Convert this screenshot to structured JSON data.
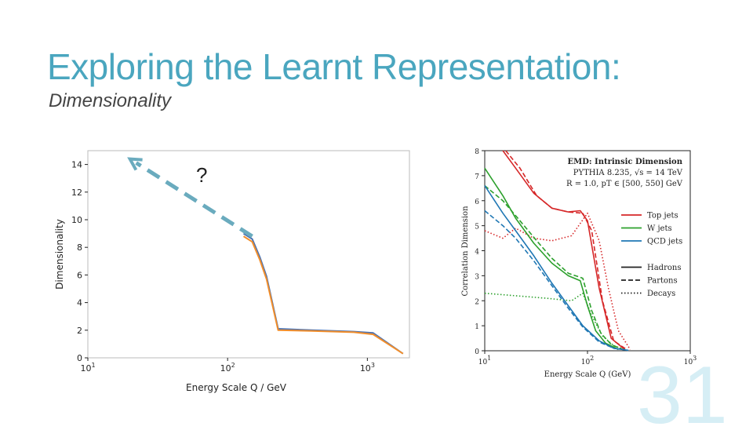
{
  "slide": {
    "title": "Exploring the Learnt Representation:",
    "subtitle": "Dimensionality",
    "page_number": "31",
    "question_mark": "?"
  },
  "chart_data": [
    {
      "type": "line",
      "xlabel": "Energy Scale Q / GeV",
      "ylabel": "Dimensionality",
      "xscale": "log",
      "xlim": [
        10,
        2000
      ],
      "ylim": [
        0,
        15
      ],
      "xticks": [
        10,
        100,
        1000
      ],
      "xtick_labels": [
        "10",
        "10",
        "10"
      ],
      "xtick_exponents": [
        "1",
        "2",
        "3"
      ],
      "yticks": [
        0,
        2,
        4,
        6,
        8,
        10,
        12,
        14
      ],
      "series": [
        {
          "color": "#4c72b0",
          "x": [
            130,
            150,
            170,
            190,
            230,
            400,
            800,
            1100,
            1800
          ],
          "y": [
            9.0,
            8.6,
            7.3,
            5.9,
            2.1,
            2.0,
            1.9,
            1.8,
            0.3
          ]
        },
        {
          "color": "#f28e2b",
          "x": [
            130,
            150,
            170,
            190,
            230,
            400,
            800,
            1100,
            1800
          ],
          "y": [
            8.8,
            8.4,
            7.1,
            5.7,
            2.0,
            1.95,
            1.85,
            1.7,
            0.3
          ]
        }
      ],
      "annotation": {
        "color": "#6aabbe",
        "from": [
          150,
          8.8
        ],
        "to": [
          20,
          14.4
        ]
      }
    },
    {
      "type": "line",
      "xlabel": "Energy Scale Q (GeV)",
      "ylabel": "Correlation Dimension",
      "xscale": "log",
      "xlim": [
        10,
        1000
      ],
      "ylim": [
        0,
        8
      ],
      "xticks": [
        10,
        100,
        1000
      ],
      "xtick_labels": [
        "10",
        "10",
        "10"
      ],
      "xtick_exponents": [
        "1",
        "2",
        "3"
      ],
      "yticks": [
        0,
        1,
        2,
        3,
        4,
        5,
        6,
        7,
        8
      ],
      "legend_text": {
        "heading": "EMD: Intrinsic Dimension",
        "line2": "PYTHIA 8.235, √s = 14 TeV",
        "line3": "R = 1.0, pT ∈ [500, 550] GeV"
      },
      "legend_placement": "right",
      "legend": [
        {
          "label": "Top jets",
          "color": "#d62728",
          "style": "solid"
        },
        {
          "label": "W jets",
          "color": "#2ca02c",
          "style": "solid"
        },
        {
          "label": "QCD jets",
          "color": "#1f77b4",
          "style": "solid"
        },
        {
          "label": "Hadrons",
          "color": "#222222",
          "style": "solid"
        },
        {
          "label": "Partons",
          "color": "#222222",
          "style": "dashed"
        },
        {
          "label": "Decays",
          "color": "#222222",
          "style": "dotted"
        }
      ],
      "series": [
        {
          "color": "#d62728",
          "style": "solid",
          "x": [
            15,
            20,
            30,
            45,
            65,
            85,
            100,
            130,
            170,
            230
          ],
          "y": [
            8.0,
            7.3,
            6.3,
            5.7,
            5.55,
            5.6,
            5.2,
            2.5,
            0.5,
            0.05
          ]
        },
        {
          "color": "#d62728",
          "style": "dashed",
          "x": [
            16,
            22,
            32,
            45,
            65,
            90,
            110,
            140,
            180,
            240
          ],
          "y": [
            8.0,
            7.3,
            6.2,
            5.7,
            5.55,
            5.5,
            4.8,
            2.0,
            0.4,
            0.05
          ]
        },
        {
          "color": "#d62728",
          "style": "dotted",
          "x": [
            10,
            15,
            20,
            30,
            45,
            70,
            100,
            130,
            160,
            200,
            260
          ],
          "y": [
            4.8,
            4.5,
            4.9,
            4.5,
            4.4,
            4.6,
            5.5,
            4.4,
            2.5,
            0.8,
            0.05
          ]
        },
        {
          "color": "#2ca02c",
          "style": "solid",
          "x": [
            10,
            15,
            20,
            30,
            45,
            65,
            85,
            100,
            120,
            150,
            200
          ],
          "y": [
            7.3,
            6.2,
            5.3,
            4.3,
            3.5,
            3.0,
            2.8,
            1.8,
            0.8,
            0.3,
            0.05
          ]
        },
        {
          "color": "#2ca02c",
          "style": "dashed",
          "x": [
            10,
            15,
            22,
            32,
            45,
            65,
            90,
            110,
            135,
            170,
            220
          ],
          "y": [
            6.6,
            6.0,
            5.2,
            4.4,
            3.7,
            3.1,
            2.9,
            1.6,
            0.7,
            0.25,
            0.05
          ]
        },
        {
          "color": "#2ca02c",
          "style": "dotted",
          "x": [
            10,
            20,
            40,
            70,
            90,
            110,
            140,
            180,
            230
          ],
          "y": [
            2.3,
            2.2,
            2.1,
            2.0,
            2.3,
            1.4,
            0.6,
            0.2,
            0.05
          ]
        },
        {
          "color": "#1f77b4",
          "style": "solid",
          "x": [
            10,
            15,
            20,
            30,
            45,
            65,
            90,
            130,
            180,
            250
          ],
          "y": [
            6.6,
            5.5,
            4.8,
            3.8,
            2.7,
            1.8,
            1.0,
            0.4,
            0.1,
            0.02
          ]
        },
        {
          "color": "#1f77b4",
          "style": "dashed",
          "x": [
            10,
            15,
            20,
            30,
            45,
            65,
            90,
            130,
            180,
            250
          ],
          "y": [
            5.6,
            5.0,
            4.5,
            3.6,
            2.6,
            1.7,
            0.95,
            0.35,
            0.1,
            0.02
          ]
        }
      ]
    }
  ]
}
